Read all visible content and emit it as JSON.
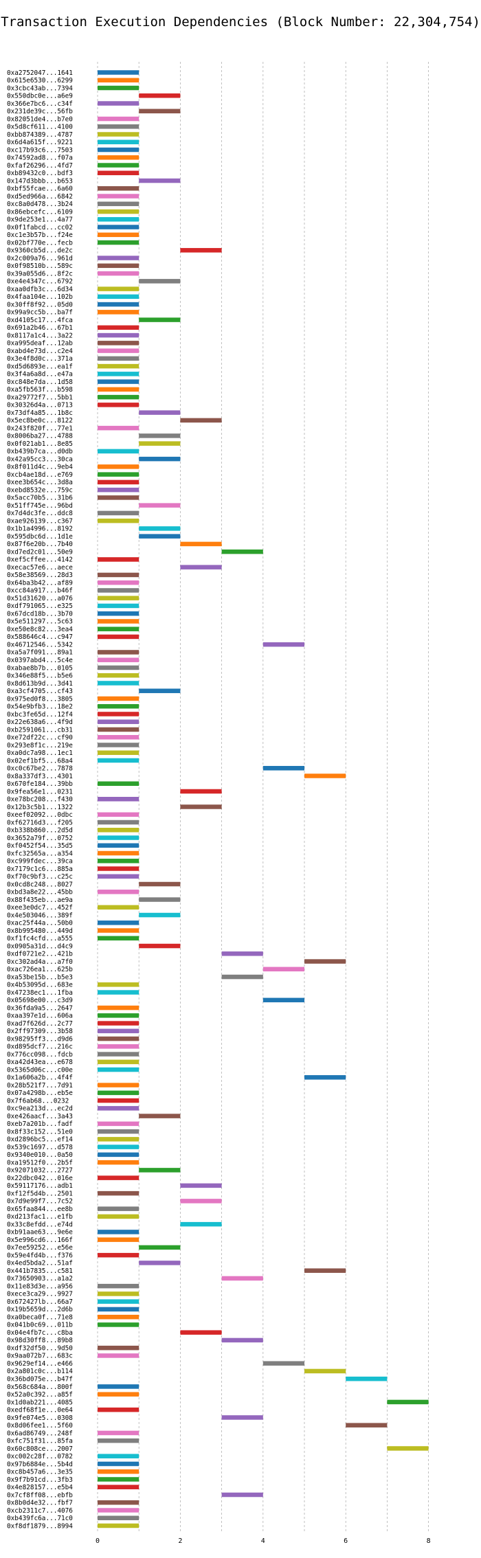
{
  "chart_data": {
    "type": "bar",
    "orientation": "horizontal-gantt",
    "title": "Transaction Execution Dependencies (Block Number: 22,304,754)",
    "xlabel": "",
    "ylabel": "",
    "xlim": [
      -0.2,
      8.5
    ],
    "xticks": [
      0,
      2,
      4,
      6,
      8
    ],
    "grid": "vertical-dashed",
    "palette": [
      "#1f77b4",
      "#ff7f0e",
      "#2ca02c",
      "#d62728",
      "#9467bd",
      "#8c564b",
      "#e377c2",
      "#7f7f7f",
      "#bcbd22",
      "#17becf"
    ],
    "rows": [
      [
        "0xa2752047...1641",
        0
      ],
      [
        "0x615e6530...6299",
        0
      ],
      [
        "0x3cbc43ab...7394",
        0
      ],
      [
        "0x550dbc0e...a6e9",
        1
      ],
      [
        "0x366e7bc6...c34f",
        0
      ],
      [
        "0x231de39c...56fb",
        1
      ],
      [
        "0x82051de4...b7e0",
        0
      ],
      [
        "0x5d8cf611...4100",
        0
      ],
      [
        "0xbb874389...4787",
        0
      ],
      [
        "0x6d4a615f...9221",
        0
      ],
      [
        "0xc17b93c6...7503",
        0
      ],
      [
        "0x74592ad8...f07a",
        0
      ],
      [
        "0xfaf26296...4fd7",
        0
      ],
      [
        "0xb89432c0...bdf3",
        0
      ],
      [
        "0x147d3bbb...b653",
        1
      ],
      [
        "0xbf55fcae...6a60",
        0
      ],
      [
        "0xd5ed966a...6842",
        0
      ],
      [
        "0xc8a0d478...3b24",
        0
      ],
      [
        "0x86ebcefc...6109",
        0
      ],
      [
        "0x9de253e1...4a77",
        0
      ],
      [
        "0x0f1fabcd...cc02",
        0
      ],
      [
        "0xc1e3b57b...f24e",
        0
      ],
      [
        "0x02bf770e...fecb",
        0
      ],
      [
        "0x9360cb5d...de2c",
        2
      ],
      [
        "0x2c009a76...961d",
        0
      ],
      [
        "0x0f98510b...589c",
        0
      ],
      [
        "0x39a055d6...8f2c",
        0
      ],
      [
        "0xe4e4347c...6792",
        1
      ],
      [
        "0xaa0dfb3c...6d34",
        0
      ],
      [
        "0x4faa104e...102b",
        0
      ],
      [
        "0x30ff8f92...05d0",
        0
      ],
      [
        "0x99a9cc5b...ba7f",
        0
      ],
      [
        "0xd4105c17...4fca",
        1
      ],
      [
        "0x691a2b46...67b1",
        0
      ],
      [
        "0x8117a1c4...3a22",
        0
      ],
      [
        "0xa995deaf...12ab",
        0
      ],
      [
        "0xabd4e73d...c2e4",
        0
      ],
      [
        "0x3e4f8d0c...371a",
        0
      ],
      [
        "0xd5d6893e...ea1f",
        0
      ],
      [
        "0x3f4a6a8d...e47a",
        0
      ],
      [
        "0xc848e7da...1d58",
        0
      ],
      [
        "0xa5fb563f...b598",
        0
      ],
      [
        "0xa29772f7...5bb1",
        0
      ],
      [
        "0x30326d4a...0713",
        0
      ],
      [
        "0x73df4a85...1b8c",
        1
      ],
      [
        "0x5ec8be0c...8122",
        2
      ],
      [
        "0x243f820f...77e1",
        0
      ],
      [
        "0x8006ba27...4788",
        1
      ],
      [
        "0x0f021ab1...8e85",
        1
      ],
      [
        "0xb439b7ca...d0db",
        0
      ],
      [
        "0x42a95cc3...30ca",
        1
      ],
      [
        "0x8f011d4c...9eb4",
        0
      ],
      [
        "0xcb4ae18d...e769",
        0
      ],
      [
        "0xee3b654c...3d8a",
        0
      ],
      [
        "0xebd8532e...759c",
        0
      ],
      [
        "0x5acc70b5...31b6",
        0
      ],
      [
        "0x51ff745e...96bd",
        1
      ],
      [
        "0x7d4dc3fe...ddc8",
        0
      ],
      [
        "0xae926139...c367",
        0
      ],
      [
        "0x1b1a4996...8192",
        1
      ],
      [
        "0x595dbc6d...1d1e",
        1
      ],
      [
        "0x87f6e20b...7b40",
        2
      ],
      [
        "0xd7ed2c01...50e9",
        3
      ],
      [
        "0xef5cffee...4142",
        0
      ],
      [
        "0xecac57e6...aece",
        2
      ],
      [
        "0x58e38569...28d3",
        0
      ],
      [
        "0x64ba3b42...af89",
        0
      ],
      [
        "0xcc84a917...b46f",
        0
      ],
      [
        "0x51d31620...a076",
        0
      ],
      [
        "0xdf791065...e325",
        0
      ],
      [
        "0x67dcd18b...3b70",
        0
      ],
      [
        "0x5e511297...5c63",
        0
      ],
      [
        "0xe50e8c82...3ea4",
        0
      ],
      [
        "0x588646c4...c947",
        0
      ],
      [
        "0x46712546...5342",
        4
      ],
      [
        "0xa5a7f091...89a1",
        0
      ],
      [
        "0x0397abd4...5c4e",
        0
      ],
      [
        "0xabae8b7b...0105",
        0
      ],
      [
        "0x346e88f5...b5e6",
        0
      ],
      [
        "0x8d613b9d...3d41",
        0
      ],
      [
        "0xa3cf4705...cf43",
        1
      ],
      [
        "0x975ed0f8...3805",
        0
      ],
      [
        "0x54e9bfb3...18e2",
        0
      ],
      [
        "0xbc3fe65d...12f4",
        0
      ],
      [
        "0x22e638a6...4f9d",
        0
      ],
      [
        "0xb2591061...cb31",
        0
      ],
      [
        "0xe72df22c...cf90",
        0
      ],
      [
        "0x293e8f1c...219e",
        0
      ],
      [
        "0xa0dc7a98...1ec1",
        0
      ],
      [
        "0x02ef1bf5...68a4",
        0
      ],
      [
        "0xc0c67be2...7878",
        4
      ],
      [
        "0x8a337df3...4301",
        5
      ],
      [
        "0x670fe184...39bb",
        0
      ],
      [
        "0x9fea56e1...0231",
        2
      ],
      [
        "0xe78bc208...f430",
        0
      ],
      [
        "0x12b3c5b1...1322",
        2
      ],
      [
        "0xeef02092...0dbc",
        0
      ],
      [
        "0xf62716d3...f205",
        0
      ],
      [
        "0xb338b860...2d5d",
        0
      ],
      [
        "0x3652a79f...0752",
        0
      ],
      [
        "0xf0452f54...35d5",
        0
      ],
      [
        "0xfc32565a...a354",
        0
      ],
      [
        "0xc999fdec...39ca",
        0
      ],
      [
        "0x7179c1c6...885a",
        0
      ],
      [
        "0xf70c9bf3...c25c",
        0
      ],
      [
        "0x0cd8c248...8027",
        1
      ],
      [
        "0xbd3a8e22...45bb",
        0
      ],
      [
        "0x88f435eb...ae9a",
        1
      ],
      [
        "0xee3e0dc7...452f",
        0
      ],
      [
        "0x4e503046...389f",
        1
      ],
      [
        "0xac25f44a...50b0",
        0
      ],
      [
        "0x8b995480...449d",
        0
      ],
      [
        "0xf1fc4cfd...a555",
        0
      ],
      [
        "0x0905a31d...d4c9",
        1
      ],
      [
        "0xdf0721e2...421b",
        3
      ],
      [
        "0xc302ad4a...a7f0",
        5
      ],
      [
        "0xac726ea1...625b",
        4
      ],
      [
        "0xa53be15b...b5e3",
        3
      ],
      [
        "0x4b53095d...683e",
        0
      ],
      [
        "0x47238ec1...1fba",
        0
      ],
      [
        "0x05698e00...c3d9",
        4
      ],
      [
        "0x36fda9a5...2647",
        0
      ],
      [
        "0xaa397e1d...606a",
        0
      ],
      [
        "0xad7f626d...2c77",
        0
      ],
      [
        "0x2ff97309...3b58",
        0
      ],
      [
        "0x98295ff3...d9d6",
        0
      ],
      [
        "0xd895dcf7...216c",
        0
      ],
      [
        "0x776cc098...fdcb",
        0
      ],
      [
        "0xa42d43ea...e678",
        0
      ],
      [
        "0x5365d06c...c00e",
        0
      ],
      [
        "0x1a606a2b...4f4f",
        5
      ],
      [
        "0x28b521f7...7d91",
        0
      ],
      [
        "0x07a4298b...eb5e",
        0
      ],
      [
        "0x7f6ab68...0232",
        0
      ],
      [
        "0xc9ea213d...ec2d",
        0
      ],
      [
        "0xe426aacf...3a43",
        1
      ],
      [
        "0xeb7a201b...fadf",
        0
      ],
      [
        "0x8f33c152...51e0",
        0
      ],
      [
        "0xd2896bc5...ef14",
        0
      ],
      [
        "0x539c1697...d578",
        0
      ],
      [
        "0x9340e010...0a50",
        0
      ],
      [
        "0xa19512f0...2b5f",
        0
      ],
      [
        "0x92071032...2727",
        1
      ],
      [
        "0x22dbc042...016e",
        0
      ],
      [
        "0x59117176...adb1",
        2
      ],
      [
        "0xf12f5d4b...2501",
        0
      ],
      [
        "0x7d9e99f7...7c52",
        2
      ],
      [
        "0x65faa844...ee8b",
        0
      ],
      [
        "0xd213fac1...e1fb",
        0
      ],
      [
        "0x33c8efdd...e74d",
        2
      ],
      [
        "0xb91aae63...9e6e",
        0
      ],
      [
        "0x5e996cd6...166f",
        0
      ],
      [
        "0x7ee59252...e56e",
        1
      ],
      [
        "0x59e4fd4b...f376",
        0
      ],
      [
        "0x4ed5bda2...51af",
        1
      ],
      [
        "0x441b7835...c581",
        5
      ],
      [
        "0x73650903...a1a2",
        3
      ],
      [
        "0x11e83d3e...a956",
        0
      ],
      [
        "0xece3ca29...9927",
        0
      ],
      [
        "0x672427lb...66a7",
        0
      ],
      [
        "0x19b5659d...2d6b",
        0
      ],
      [
        "0xa0beca0f...71e8",
        0
      ],
      [
        "0x041b0c69...011b",
        0
      ],
      [
        "0x04e4fb7c...c8ba",
        2
      ],
      [
        "0x98d30ff8...89b8",
        3
      ],
      [
        "0xdf32df50...9d50",
        0
      ],
      [
        "0x9aa072b7...683c",
        0
      ],
      [
        "0x9629ef14...e466",
        4
      ],
      [
        "0x2a801c0c...b114",
        5
      ],
      [
        "0x36bd075e...b47f",
        6
      ],
      [
        "0x568c684a...800f",
        0
      ],
      [
        "0x52a0c392...a85f",
        0
      ],
      [
        "0x1d0ab221...4085",
        7
      ],
      [
        "0xedf68f1e...0e64",
        0
      ],
      [
        "0x9fe074e5...0308",
        3
      ],
      [
        "0x8d06fee1...5f60",
        6
      ],
      [
        "0x6ad86749...248f",
        0
      ],
      [
        "0xfc751f31...85fa",
        0
      ],
      [
        "0x60c808ce...2007",
        7
      ],
      [
        "0xc002c28f...0782",
        0
      ],
      [
        "0x97b6884e...5b4d",
        0
      ],
      [
        "0xc8b457a6...3e35",
        0
      ],
      [
        "0x9f7b91cd...3fb3",
        0
      ],
      [
        "0x4e828157...e5b4",
        0
      ],
      [
        "0x7cf8ff08...ebfb",
        3
      ],
      [
        "0x8b0d4e32...fbf7",
        0
      ],
      [
        "0xcb2311c7...4076",
        0
      ],
      [
        "0xb439fc6a...71c0",
        0
      ],
      [
        "0xf8df1879...8994",
        0
      ]
    ]
  }
}
